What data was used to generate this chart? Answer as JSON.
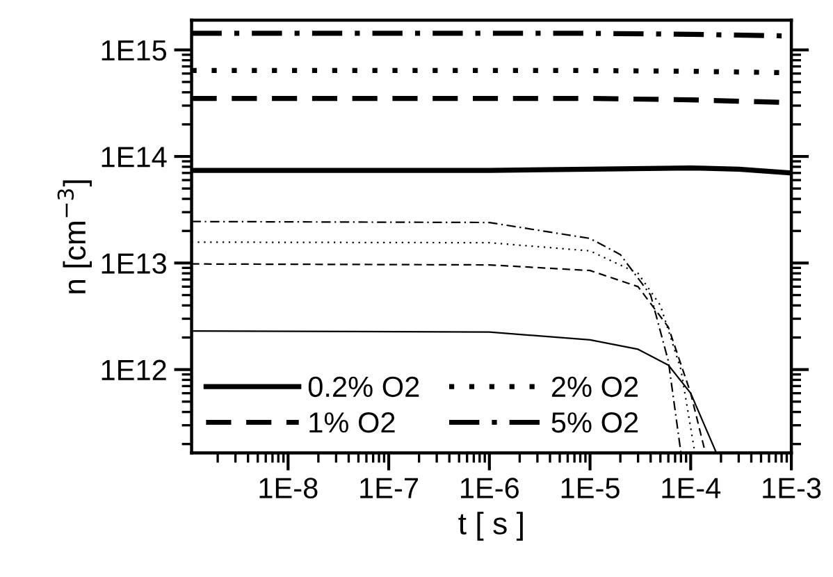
{
  "chart_data": {
    "type": "line",
    "xlabel": "t [ s ]",
    "ylabel": "n [cm$^{−3}$]",
    "log": "xy",
    "xlim": [
      1.1e-09,
      0.001
    ],
    "ylim": [
      165000000000.0,
      1900000000000000.0
    ],
    "xticks": [
      {
        "value": 1e-08,
        "label": "1E-8"
      },
      {
        "value": 1e-07,
        "label": "1E-7"
      },
      {
        "value": 1e-06,
        "label": "1E-6"
      },
      {
        "value": 1e-05,
        "label": "1E-5"
      },
      {
        "value": 0.0001,
        "label": "1E-4"
      },
      {
        "value": 0.001,
        "label": "1E-3"
      }
    ],
    "yticks": [
      {
        "value": 1000000000000.0,
        "label": "1E12"
      },
      {
        "value": 10000000000000.0,
        "label": "1E13"
      },
      {
        "value": 100000000000000.0,
        "label": "1E14"
      },
      {
        "value": 1000000000000000.0,
        "label": "1E15"
      }
    ],
    "legend": "bottom left",
    "grid": false,
    "series": [
      {
        "name": "0.2% O2",
        "color": "#000000",
        "line_style": "solid",
        "x": [
          1.1e-09,
          1e-06,
          1e-05,
          0.0001,
          0.0003,
          0.001
        ],
        "values": [
          74000000000000.0,
          74000000000000.0,
          76000000000000.0,
          78000000000000.0,
          76000000000000.0,
          70000000000000.0
        ]
      },
      {
        "name": "1% O2",
        "color": "#000000",
        "line_style": "dashed",
        "x": [
          1.1e-09,
          1e-05,
          0.0001,
          0.001
        ],
        "values": [
          350000000000000.0,
          350000000000000.0,
          340000000000000.0,
          320000000000000.0
        ]
      },
      {
        "name": "2% O2",
        "color": "#000000",
        "line_style": "dotted",
        "x": [
          1.1e-09,
          1e-05,
          0.0001,
          0.001
        ],
        "values": [
          640000000000000.0,
          640000000000000.0,
          630000000000000.0,
          610000000000000.0
        ]
      },
      {
        "name": "5% O2",
        "color": "#000000",
        "line_style": "dashdot",
        "x": [
          1.1e-09,
          1e-05,
          0.0001,
          0.001
        ],
        "values": [
          1430000000000000.0,
          1430000000000000.0,
          1400000000000000.0,
          1350000000000000.0
        ]
      },
      {
        "color": "#000000",
        "line_style": "solid",
        "x": [
          1.1e-09,
          1e-06,
          1e-05,
          3e-05,
          6e-05,
          0.0001,
          0.00018
        ],
        "values": [
          2300000000000.0,
          2250000000000.0,
          1900000000000.0,
          1550000000000.0,
          1100000000000.0,
          600000000000.0,
          165000000000.0
        ]
      },
      {
        "color": "#000000",
        "line_style": "dashed",
        "x": [
          1.1e-09,
          1e-06,
          1e-05,
          3e-05,
          6e-05,
          0.0001,
          0.00014
        ],
        "values": [
          9800000000000.0,
          9600000000000.0,
          8500000000000.0,
          6000000000000.0,
          2500000000000.0,
          600000000000.0,
          165000000000.0
        ]
      },
      {
        "color": "#000000",
        "line_style": "dotted",
        "x": [
          1.1e-09,
          1e-06,
          1e-05,
          3e-05,
          5e-05,
          8e-05,
          0.00011
        ],
        "values": [
          15700000000000.0,
          15500000000000.0,
          13000000000000.0,
          8000000000000.0,
          4000000000000.0,
          1000000000000.0,
          165000000000.0
        ]
      },
      {
        "color": "#000000",
        "line_style": "dashdot",
        "x": [
          1.1e-09,
          1e-06,
          1e-05,
          2e-05,
          4e-05,
          6e-05,
          8e-05
        ],
        "values": [
          24500000000000.0,
          24000000000000.0,
          17000000000000.0,
          12000000000000.0,
          5000000000000.0,
          1200000000000.0,
          165000000000.0
        ]
      }
    ]
  }
}
